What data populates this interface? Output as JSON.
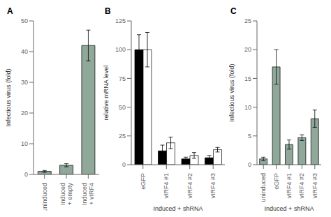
{
  "chart_data": [
    {
      "type": "bar",
      "title": "A",
      "categories": [
        "uninduced",
        "Induced\n+ empty",
        "Induced\n+ vIRF4"
      ],
      "values": [
        1.0,
        3.0,
        42.0
      ],
      "errors": [
        0.3,
        0.5,
        5.0
      ],
      "color": "#8fa89a",
      "ylabel": "Infectious virus (fold)",
      "ylim": [
        0,
        50
      ],
      "yticks": [
        0,
        10,
        20,
        30,
        40,
        50
      ],
      "grid": false
    },
    {
      "type": "bar",
      "title": "B",
      "categories": [
        "eGFP",
        "vIRF4 #1",
        "vIRF4 #2",
        "vIRF4 #3"
      ],
      "series": [
        {
          "color": "#000000",
          "values": [
            100,
            12,
            5,
            6
          ],
          "errors": [
            13,
            5,
            1.5,
            2
          ]
        },
        {
          "color": "#ffffff",
          "values": [
            100,
            19,
            8,
            13
          ],
          "errors": [
            15,
            5,
            2.5,
            2
          ]
        }
      ],
      "ylabel": "relative mRNA level",
      "xlabel": "Induced + shRNA",
      "ylim": [
        0,
        125
      ],
      "yticks": [
        0,
        25,
        50,
        75,
        100,
        125
      ],
      "grid": false
    },
    {
      "type": "bar",
      "title": "C",
      "categories": [
        "uninduced",
        "eGFP",
        "vIRF4 #1",
        "vIRF4 #2",
        "vIRF4 #3"
      ],
      "values": [
        1.0,
        17.0,
        3.5,
        4.7,
        8.0
      ],
      "errors": [
        0.3,
        3.0,
        0.8,
        0.5,
        1.5
      ],
      "color": "#8fa89a",
      "ylabel": "Infectious virus (fold)",
      "xlabel": "Induced + shRNA",
      "ylim": [
        0,
        25
      ],
      "yticks": [
        0,
        5,
        10,
        15,
        20,
        25
      ],
      "grid": false
    }
  ]
}
